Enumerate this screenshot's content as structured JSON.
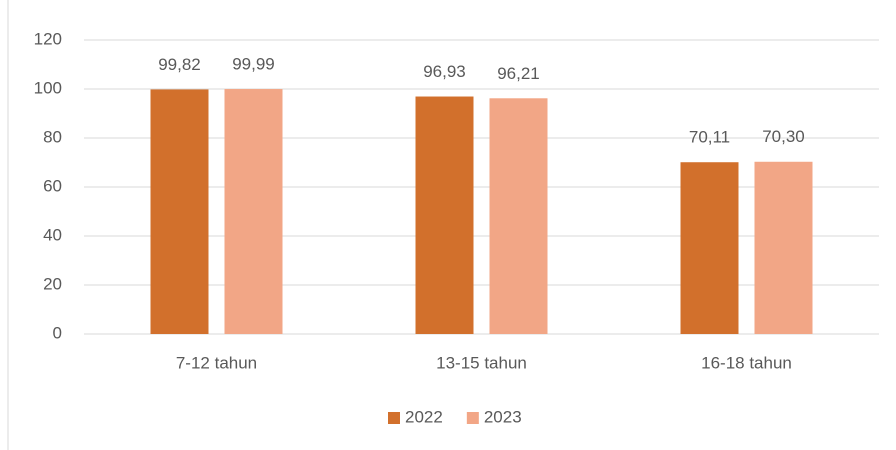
{
  "chart_data": {
    "type": "bar",
    "categories": [
      "7-12 tahun",
      "13-15 tahun",
      "16-18 tahun"
    ],
    "series": [
      {
        "name": "2022",
        "color": "#d2702c",
        "values": [
          99.82,
          96.93,
          70.11
        ],
        "value_labels": [
          "99,82",
          "96,93",
          "70,11"
        ]
      },
      {
        "name": "2023",
        "color": "#f2a686",
        "values": [
          99.99,
          96.21,
          70.3
        ],
        "value_labels": [
          "99,99",
          "96,21",
          "70,30"
        ]
      }
    ],
    "ylim": [
      0,
      120
    ],
    "yticks": [
      0,
      20,
      40,
      60,
      80,
      100,
      120
    ],
    "grid": true,
    "legend": "bottom"
  }
}
